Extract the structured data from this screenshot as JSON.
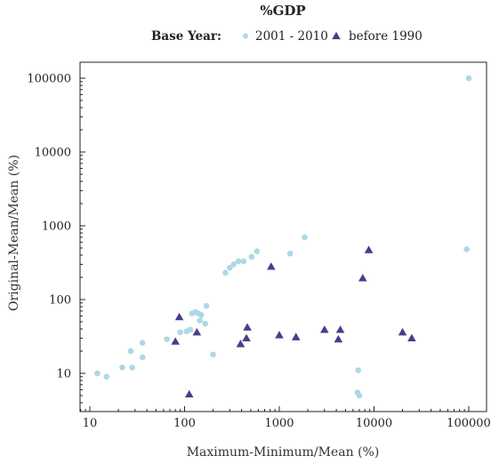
{
  "chart_data": {
    "type": "scatter",
    "title": "%GDP",
    "legend": {
      "title": "Base Year:",
      "placement": "top-center",
      "entries": [
        {
          "name": "2001 - 2010",
          "marker": "circle",
          "color": "#add8e6"
        },
        {
          "name": "before 1990",
          "marker": "triangle",
          "color": "#483d8b"
        }
      ]
    },
    "xlabel": "Maximum-Minimum/Mean (%)",
    "ylabel": "Original-Mean/Mean (%)",
    "xscale": "log",
    "yscale": "log",
    "xlim": [
      8,
      130000
    ],
    "ylim": [
      3,
      200000
    ],
    "xticks": [
      10,
      100,
      1000,
      10000,
      100000
    ],
    "xtick_labels": [
      "10",
      "100",
      "1000",
      "10000",
      "100000"
    ],
    "yticks": [
      10,
      100,
      1000,
      10000,
      100000
    ],
    "ytick_labels": [
      "10",
      "100",
      "1000",
      "10000",
      "100000"
    ],
    "grid": false,
    "series": [
      {
        "name": "2001 - 2010",
        "marker": "circle",
        "color": "#add8e6",
        "points": [
          [
            12,
            10
          ],
          [
            15,
            9
          ],
          [
            22,
            12
          ],
          [
            27,
            20
          ],
          [
            28,
            12
          ],
          [
            36,
            26
          ],
          [
            36,
            16.5
          ],
          [
            65,
            29
          ],
          [
            90,
            36
          ],
          [
            105,
            37
          ],
          [
            115,
            39
          ],
          [
            120,
            65
          ],
          [
            130,
            68
          ],
          [
            140,
            65
          ],
          [
            145,
            52
          ],
          [
            150,
            62
          ],
          [
            165,
            47
          ],
          [
            170,
            82
          ],
          [
            200,
            18
          ],
          [
            270,
            230
          ],
          [
            300,
            270
          ],
          [
            330,
            300
          ],
          [
            370,
            330
          ],
          [
            420,
            330
          ],
          [
            510,
            380
          ],
          [
            580,
            450
          ],
          [
            1300,
            420
          ],
          [
            1850,
            700
          ],
          [
            6800,
            11
          ],
          [
            6700,
            5.5
          ],
          [
            7000,
            5
          ],
          [
            95000,
            480
          ],
          [
            100000,
            100000
          ]
        ]
      },
      {
        "name": "before 1990",
        "marker": "triangle",
        "color": "#483d8b",
        "points": [
          [
            80,
            27
          ],
          [
            88,
            58
          ],
          [
            112,
            5.2
          ],
          [
            135,
            36
          ],
          [
            390,
            25
          ],
          [
            450,
            30
          ],
          [
            460,
            42
          ],
          [
            820,
            280
          ],
          [
            1000,
            33
          ],
          [
            1500,
            31
          ],
          [
            3000,
            39
          ],
          [
            4200,
            29
          ],
          [
            4400,
            39
          ],
          [
            7600,
            195
          ],
          [
            8800,
            470
          ],
          [
            20000,
            36
          ],
          [
            25000,
            30
          ]
        ]
      }
    ]
  }
}
